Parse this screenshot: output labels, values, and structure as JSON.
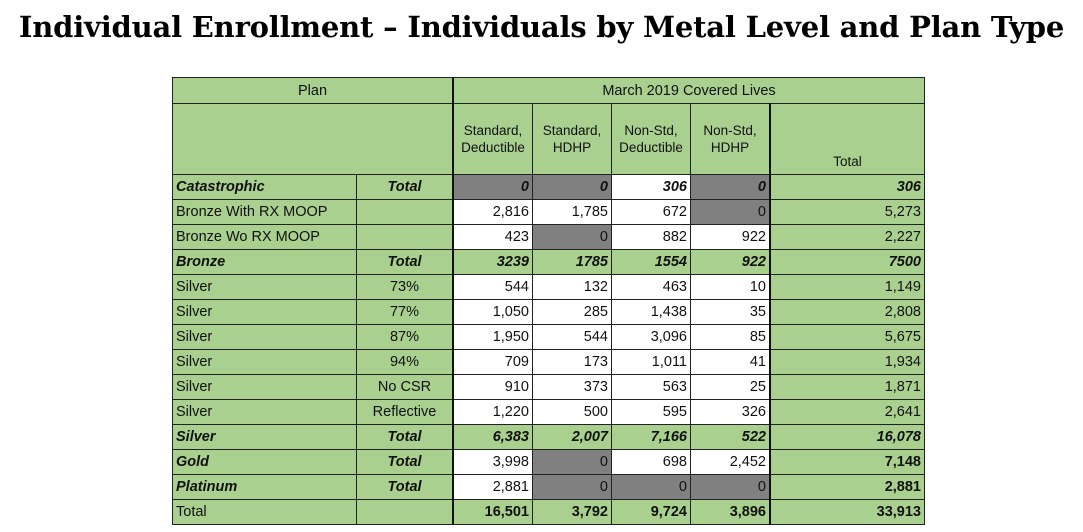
{
  "title": "Individual Enrollment – Individuals by Metal Level and Plan Type",
  "colors": {
    "green": "#a9d08e",
    "gray": "#808080",
    "white": "#ffffff"
  },
  "header": {
    "plan": "Plan",
    "group": "March 2019 Covered Lives",
    "columns": [
      [
        "Standard,",
        "Deductible"
      ],
      [
        "Standard,",
        "HDHP"
      ],
      [
        "Non-Std,",
        "Deductible"
      ],
      [
        "Non-Std,",
        "HDHP"
      ],
      [
        "Total"
      ]
    ]
  },
  "rows": [
    {
      "name": "Catastrophic",
      "sub": "Total",
      "style": "bold-italic",
      "cells": [
        "0",
        "0",
        "306",
        "0"
      ],
      "shade": [
        "gray",
        "gray",
        "white",
        "gray"
      ],
      "total": "306"
    },
    {
      "name": "Bronze With RX MOOP",
      "sub": "",
      "style": "plain",
      "cells": [
        "2,816",
        "1,785",
        "672",
        "0"
      ],
      "shade": [
        "white",
        "white",
        "white",
        "gray"
      ],
      "total": "5,273"
    },
    {
      "name": "Bronze Wo RX MOOP",
      "sub": "",
      "style": "plain",
      "cells": [
        "423",
        "0",
        "882",
        "922"
      ],
      "shade": [
        "white",
        "gray",
        "white",
        "white"
      ],
      "total": "2,227"
    },
    {
      "name": "Bronze",
      "sub": "Total",
      "style": "bold-italic",
      "cells": [
        "3239",
        "1785",
        "1554",
        "922"
      ],
      "shade": [
        "green",
        "green",
        "green",
        "green"
      ],
      "total": "7500"
    },
    {
      "name": "Silver",
      "sub": "73%",
      "style": "plain",
      "cells": [
        "544",
        "132",
        "463",
        "10"
      ],
      "shade": [
        "white",
        "white",
        "white",
        "white"
      ],
      "total": "1,149"
    },
    {
      "name": "Silver",
      "sub": "77%",
      "style": "plain",
      "cells": [
        "1,050",
        "285",
        "1,438",
        "35"
      ],
      "shade": [
        "white",
        "white",
        "white",
        "white"
      ],
      "total": "2,808"
    },
    {
      "name": "Silver",
      "sub": "87%",
      "style": "plain",
      "cells": [
        "1,950",
        "544",
        "3,096",
        "85"
      ],
      "shade": [
        "white",
        "white",
        "white",
        "white"
      ],
      "total": "5,675"
    },
    {
      "name": "Silver",
      "sub": "94%",
      "style": "plain",
      "cells": [
        "709",
        "173",
        "1,011",
        "41"
      ],
      "shade": [
        "white",
        "white",
        "white",
        "white"
      ],
      "total": "1,934"
    },
    {
      "name": "Silver",
      "sub": "No CSR",
      "style": "plain",
      "cells": [
        "910",
        "373",
        "563",
        "25"
      ],
      "shade": [
        "white",
        "white",
        "white",
        "white"
      ],
      "total": "1,871"
    },
    {
      "name": "Silver",
      "sub": "Reflective",
      "style": "plain",
      "cells": [
        "1,220",
        "500",
        "595",
        "326"
      ],
      "shade": [
        "white",
        "white",
        "white",
        "white"
      ],
      "total": "2,641"
    },
    {
      "name": "Silver",
      "sub": "Total",
      "style": "bold-italic",
      "cells": [
        "6,383",
        "2,007",
        "7,166",
        "522"
      ],
      "shade": [
        "green",
        "green",
        "green",
        "green"
      ],
      "total": "16,078"
    },
    {
      "name": "Gold",
      "sub": "Total",
      "style": "bold-italic-name",
      "cells": [
        "3,998",
        "0",
        "698",
        "2,452"
      ],
      "shade": [
        "white",
        "gray",
        "white",
        "white"
      ],
      "total": "7,148"
    },
    {
      "name": "Platinum",
      "sub": "Total",
      "style": "bold-italic-name",
      "cells": [
        "2,881",
        "0",
        "0",
        "0"
      ],
      "shade": [
        "white",
        "gray",
        "gray",
        "gray"
      ],
      "total": "2,881"
    },
    {
      "name": "Total",
      "sub": "",
      "style": "bold-nums",
      "cells": [
        "16,501",
        "3,792",
        "9,724",
        "3,896"
      ],
      "shade": [
        "green",
        "green",
        "green",
        "green"
      ],
      "total": "33,913"
    }
  ]
}
